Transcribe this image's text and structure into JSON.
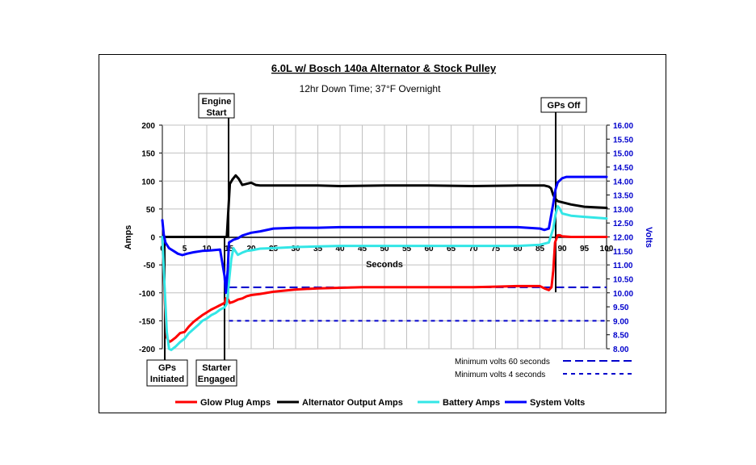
{
  "chart_data": {
    "type": "line",
    "title": "6.0L w/ Bosch 140a Alternator & Stock Pulley",
    "subtitle": "12hr Down Time;  37°F Overnight",
    "xlabel": "Seconds",
    "ylabel": "Amps",
    "y2label": "Volts",
    "xlim": [
      0,
      100
    ],
    "ylim": [
      -200,
      200
    ],
    "y2lim": [
      8.0,
      16.0
    ],
    "x_ticks": [
      "0",
      "5",
      "10",
      "15",
      "20",
      "25",
      "30",
      "35",
      "40",
      "45",
      "50",
      "55",
      "60",
      "65",
      "70",
      "75",
      "80",
      "85",
      "90",
      "95",
      "100"
    ],
    "y_ticks": [
      "200",
      "150",
      "100",
      "50",
      "0",
      "-50",
      "-100",
      "-150",
      "-200"
    ],
    "y2_ticks": [
      "16.00",
      "15.50",
      "15.00",
      "14.50",
      "14.00",
      "13.50",
      "13.00",
      "12.50",
      "12.00",
      "11.50",
      "11.00",
      "10.50",
      "10.00",
      "9.50",
      "9.00",
      "8.50",
      "8.00"
    ],
    "grid": true,
    "legend_position": "bottom",
    "series": [
      {
        "name": "Glow Plug Amps",
        "color": "#ff0000",
        "axis": "left",
        "x": [
          0,
          0.3,
          0.6,
          1,
          1.5,
          2,
          3,
          4,
          5,
          6,
          7,
          8,
          9,
          10,
          11,
          12,
          13,
          14,
          14.3,
          14.8,
          15.2,
          16,
          17,
          18,
          19,
          20,
          22,
          25,
          30,
          35,
          40,
          45,
          50,
          55,
          60,
          65,
          70,
          75,
          80,
          85,
          86,
          87,
          87.6,
          88,
          88.4,
          89,
          89.5,
          90,
          92,
          95,
          100
        ],
        "y": [
          0,
          -60,
          -120,
          -180,
          -188,
          -186,
          -180,
          -172,
          -170,
          -160,
          -152,
          -146,
          -140,
          -135,
          -130,
          -126,
          -122,
          -118,
          -110,
          -112,
          -118,
          -116,
          -112,
          -110,
          -106,
          -104,
          -102,
          -98,
          -94,
          -92,
          -91,
          -90,
          -90,
          -90,
          -90,
          -90,
          -90,
          -89,
          -88,
          -88,
          -92,
          -95,
          -90,
          -60,
          -10,
          3,
          3,
          1,
          0,
          0,
          0
        ]
      },
      {
        "name": "Alternator Output  Amps",
        "color": "#000000",
        "axis": "left",
        "x": [
          0,
          14.5,
          14.8,
          15.2,
          15.8,
          16.5,
          17.2,
          18,
          19,
          20,
          21,
          22,
          25,
          30,
          35,
          40,
          50,
          60,
          70,
          80,
          85,
          86,
          87,
          87.5,
          88,
          88.5,
          89,
          90,
          92,
          95,
          100
        ],
        "y": [
          0,
          0,
          40,
          95,
          103,
          110,
          104,
          93,
          95,
          97,
          93,
          92,
          92,
          92,
          92,
          91,
          92,
          92,
          91,
          92,
          92,
          92,
          90,
          87,
          75,
          68,
          64,
          62,
          58,
          54,
          52
        ]
      },
      {
        "name": "Battery Amps",
        "color": "#33e6e6",
        "axis": "left",
        "x": [
          0,
          0.5,
          1,
          1.5,
          2,
          3,
          4,
          5,
          6,
          7,
          8,
          9,
          10,
          11,
          12,
          13,
          14,
          14.5,
          15,
          15.5,
          16,
          17,
          18,
          19,
          20,
          22,
          25,
          30,
          35,
          40,
          50,
          60,
          70,
          80,
          85,
          86,
          87,
          88,
          88.5,
          89,
          89.5,
          90,
          92,
          95,
          100
        ],
        "y": [
          0,
          -90,
          -170,
          -200,
          -202,
          -196,
          -188,
          -182,
          -172,
          -165,
          -158,
          -150,
          -146,
          -140,
          -136,
          -130,
          -126,
          -120,
          -80,
          -40,
          -20,
          -32,
          -28,
          -25,
          -24,
          -21,
          -20,
          -18,
          -17,
          -16,
          -16,
          -16,
          -16,
          -16,
          -14,
          -12,
          -10,
          15,
          40,
          55,
          50,
          42,
          38,
          36,
          33
        ]
      },
      {
        "name": "System Volts",
        "color": "#0000ff",
        "axis": "right",
        "x": [
          0,
          0.3,
          0.7,
          1.5,
          2.5,
          3.5,
          4.5,
          5.5,
          7,
          9,
          11,
          13,
          14,
          14.3,
          14.7,
          15,
          15.5,
          16,
          17,
          18,
          19,
          20,
          22,
          25,
          30,
          35,
          40,
          50,
          60,
          70,
          80,
          85,
          86,
          87,
          88,
          88.5,
          89,
          90,
          91,
          92,
          95,
          100
        ],
        "y": [
          12.6,
          12.1,
          11.8,
          11.6,
          11.5,
          11.4,
          11.35,
          11.4,
          11.45,
          11.5,
          11.52,
          11.55,
          10.6,
          10.0,
          10.8,
          11.8,
          11.85,
          11.9,
          11.95,
          12.05,
          12.1,
          12.15,
          12.2,
          12.3,
          12.33,
          12.33,
          12.35,
          12.35,
          12.35,
          12.35,
          12.35,
          12.3,
          12.25,
          12.3,
          13.2,
          13.7,
          13.95,
          14.1,
          14.15,
          14.15,
          14.15,
          14.15
        ]
      }
    ],
    "reference_lines": [
      {
        "name": "Minimum volts 60 seconds",
        "y2": 10.2,
        "x_start": 15,
        "x_end": 100,
        "color": "#0000cc",
        "dash": "long"
      },
      {
        "name": "Minimum volts 4 seconds",
        "y2": 9.0,
        "x_start": 15,
        "x_end": 100,
        "color": "#0000cc",
        "dash": "short"
      }
    ],
    "event_markers": [
      {
        "label_lines": [
          "Engine",
          "Start"
        ],
        "x": 15
      },
      {
        "label_lines": [
          "GPs Off"
        ],
        "x": 88
      },
      {
        "label_lines": [
          "GPs",
          "Initiated"
        ],
        "x": 0.5
      },
      {
        "label_lines": [
          "Starter",
          "Engaged"
        ],
        "x": 14
      }
    ]
  }
}
